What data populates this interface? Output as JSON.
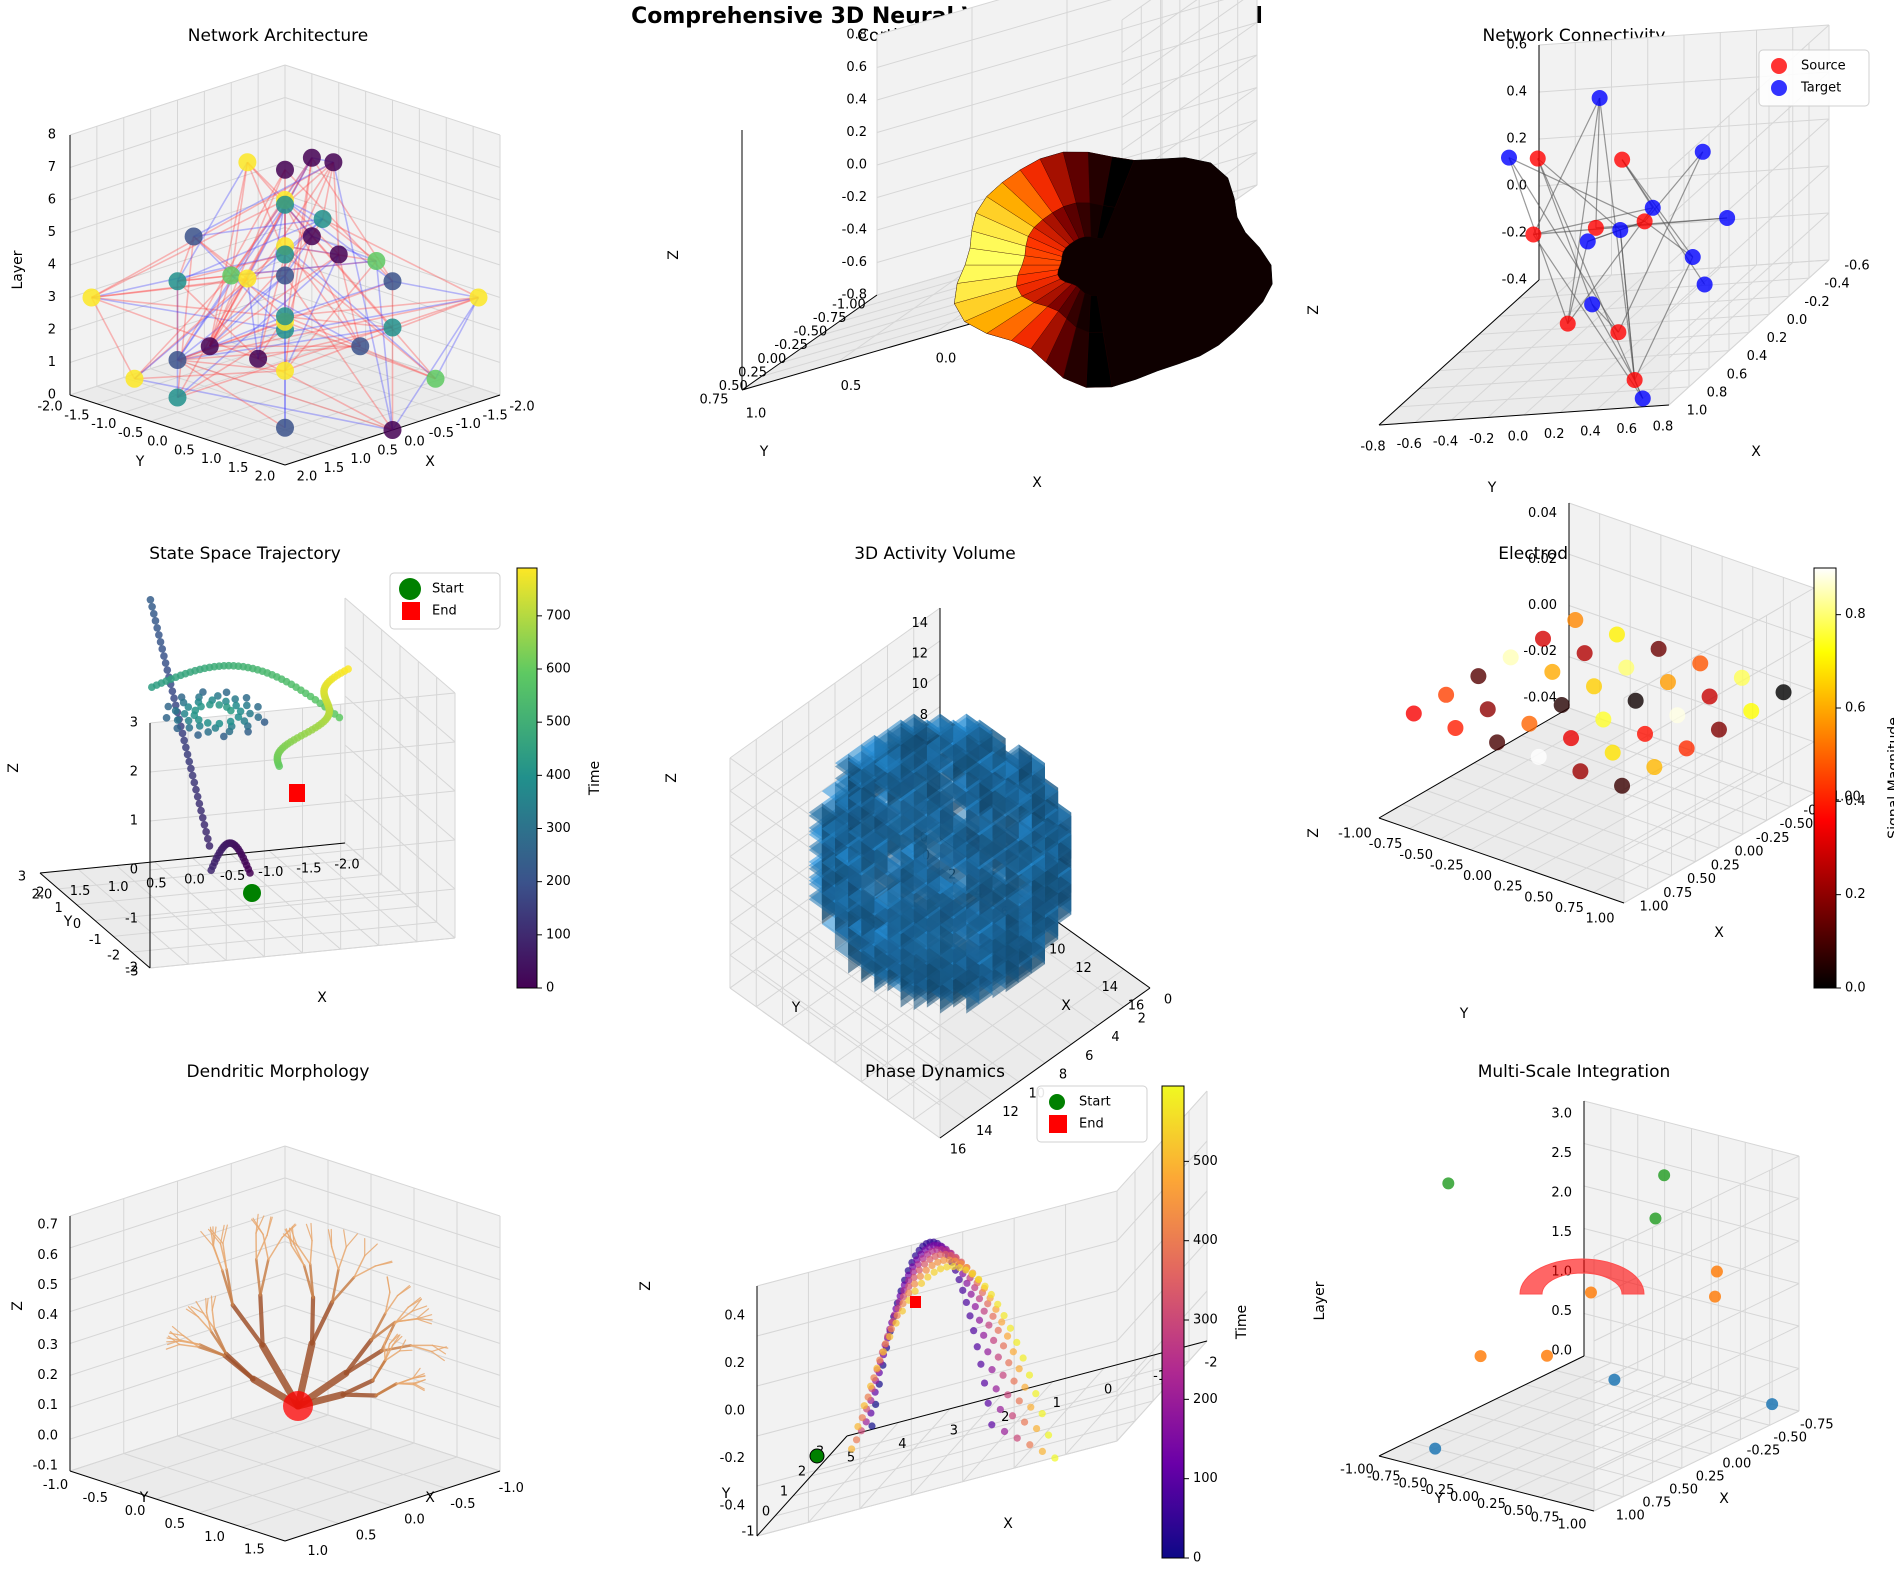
{
  "suptitle": "Comprehensive 3D Neural Visualization Dashboard",
  "chart_data": [
    {
      "type": "scatter3d",
      "title": "Network Architecture",
      "xlabel": "X",
      "ylabel": "Y",
      "zlabel": "Layer",
      "xlim": [
        -2,
        2
      ],
      "ylim": [
        -2,
        2
      ],
      "zlim": [
        0,
        8
      ],
      "xticks": [
        "-2.0",
        "-1.5",
        "-1.0",
        "-0.5",
        "0.0",
        "0.5",
        "1.0",
        "1.5",
        "2.0"
      ],
      "yticks": [
        "-2.0",
        "-1.5",
        "-1.0",
        "-0.5",
        "0.0",
        "0.5",
        "1.0",
        "1.5",
        "2.0"
      ],
      "zticks": [
        "0",
        "1",
        "2",
        "3",
        "4",
        "5",
        "6",
        "7",
        "8"
      ],
      "edge_colors": [
        "#ff4040",
        "#4040ff"
      ],
      "nodes": [
        {
          "x": 0,
          "y": 2,
          "z": 0,
          "c": "#440154"
        },
        {
          "x": -2,
          "y": 0,
          "z": 1,
          "c": "#21908c"
        },
        {
          "x": 2,
          "y": 0,
          "z": 1,
          "c": "#21908c"
        },
        {
          "x": 0,
          "y": -2,
          "z": 0,
          "c": "#3b528b"
        },
        {
          "x": 1.4,
          "y": 1.4,
          "z": 0.5,
          "c": "#3b528b"
        },
        {
          "x": -1.4,
          "y": 1.4,
          "z": 0.5,
          "c": "#5ec962"
        },
        {
          "x": 1.4,
          "y": -1.4,
          "z": 0.5,
          "c": "#fde725"
        },
        {
          "x": -1.4,
          "y": -1.4,
          "z": 0.5,
          "c": "#21908c"
        },
        {
          "x": 0.7,
          "y": 0.7,
          "z": 1.5,
          "c": "#fde725"
        },
        {
          "x": -0.7,
          "y": 0.7,
          "z": 1.5,
          "c": "#3b528b"
        },
        {
          "x": 0.7,
          "y": -0.7,
          "z": 1.5,
          "c": "#440154"
        },
        {
          "x": -0.7,
          "y": -0.7,
          "z": 1.5,
          "c": "#fde725"
        },
        {
          "x": 2,
          "y": 1.5,
          "z": 3,
          "c": "#440154"
        },
        {
          "x": -2,
          "y": -1.5,
          "z": 3,
          "c": "#440154"
        },
        {
          "x": 1.8,
          "y": -1.8,
          "z": 3,
          "c": "#fde725"
        },
        {
          "x": -1.8,
          "y": 1.8,
          "z": 3,
          "c": "#fde725"
        },
        {
          "x": 1,
          "y": 1,
          "z": 3.5,
          "c": "#21908c"
        },
        {
          "x": -1,
          "y": 1,
          "z": 3.5,
          "c": "#3b528b"
        },
        {
          "x": 1,
          "y": -1,
          "z": 3.5,
          "c": "#21908c"
        },
        {
          "x": -1,
          "y": -1,
          "z": 3.5,
          "c": "#fde725"
        },
        {
          "x": 0.3,
          "y": 0.3,
          "z": 4,
          "c": "#3b528b"
        },
        {
          "x": -0.3,
          "y": -0.3,
          "z": 4,
          "c": "#21908c"
        },
        {
          "x": 0.8,
          "y": -0.2,
          "z": 4,
          "c": "#5ec962"
        },
        {
          "x": -0.8,
          "y": 0.2,
          "z": 4,
          "c": "#440154"
        },
        {
          "x": 1.2,
          "y": 0.5,
          "z": 4.5,
          "c": "#fde725"
        },
        {
          "x": -1.2,
          "y": -0.5,
          "z": 4.5,
          "c": "#21908c"
        },
        {
          "x": 0.5,
          "y": -1.2,
          "z": 4.5,
          "c": "#3b528b"
        },
        {
          "x": -0.5,
          "y": 1.2,
          "z": 4.5,
          "c": "#5ec962"
        },
        {
          "x": 0,
          "y": 0,
          "z": 6,
          "c": "#fde725"
        },
        {
          "x": 0.6,
          "y": 0.6,
          "z": 6.5,
          "c": "#21908c"
        },
        {
          "x": -0.4,
          "y": -0.4,
          "z": 6.5,
          "c": "#440154"
        },
        {
          "x": 0.2,
          "y": -0.5,
          "z": 7,
          "c": "#fde725"
        },
        {
          "x": -0.6,
          "y": 0.3,
          "z": 7,
          "c": "#440154"
        },
        {
          "x": 0.4,
          "y": 0.9,
          "z": 8,
          "c": "#440154"
        }
      ]
    },
    {
      "type": "surface3d",
      "title": "Cortical Activation",
      "xlabel": "X",
      "ylabel": "Y",
      "zlabel": "Z",
      "xlim": [
        -1,
        1
      ],
      "ylim": [
        -1,
        1
      ],
      "zlim": [
        -0.8,
        0.8
      ],
      "xticks": [
        "-1.0",
        "-0.5",
        "0.0",
        "0.5",
        "1.0"
      ],
      "yticks": [
        "-1.00",
        "-0.75",
        "-0.50",
        "-0.25",
        "0.00",
        "0.25",
        "0.50",
        "0.75"
      ],
      "zticks": [
        "-0.8",
        "-0.6",
        "-0.4",
        "-0.2",
        "0.0",
        "0.2",
        "0.4",
        "0.6",
        "0.8"
      ],
      "colormap": [
        "#000000",
        "#7a0000",
        "#ff3000",
        "#ffb000",
        "#ffff60"
      ]
    },
    {
      "type": "scatter3d",
      "title": "Network Connectivity",
      "xlabel": "X",
      "ylabel": "Y",
      "zlabel": "Z",
      "xlim": [
        -0.6,
        1.0
      ],
      "ylim": [
        -0.8,
        0.8
      ],
      "zlim": [
        -0.4,
        0.7
      ],
      "xticks": [
        "-0.6",
        "-0.4",
        "-0.2",
        "0.0",
        "0.2",
        "0.4",
        "0.6",
        "0.8",
        "1.0"
      ],
      "yticks": [
        "-0.8",
        "-0.6",
        "-0.4",
        "-0.2",
        "0.0",
        "0.2",
        "0.4",
        "0.6",
        "0.8"
      ],
      "zticks": [
        "-0.4",
        "-0.2",
        "0.0",
        "0.2",
        "0.4",
        "0.6"
      ],
      "legend": [
        "Source",
        "Target"
      ],
      "source_color": "#ff0000",
      "target_color": "#0000ff",
      "sources": [
        [
          0.5,
          -0.2,
          0.6
        ],
        [
          0.2,
          0.1,
          0.45
        ],
        [
          0.7,
          0.5,
          0.35
        ],
        [
          0.1,
          -0.1,
          0.1
        ],
        [
          0.0,
          -0.5,
          0.05
        ],
        [
          0.6,
          0.3,
          -0.2
        ],
        [
          0.2,
          -0.2,
          -0.3
        ],
        [
          0.8,
          0.5,
          -0.35
        ]
      ],
      "targets": [
        [
          -0.3,
          -0.8,
          0.3
        ],
        [
          -0.3,
          -0.3,
          0.55
        ],
        [
          0.3,
          0.6,
          0.5
        ],
        [
          0.8,
          0.6,
          0.45
        ],
        [
          0.4,
          0.2,
          0.2
        ],
        [
          0.6,
          0.9,
          0.3
        ],
        [
          0.0,
          -0.2,
          0.0
        ],
        [
          0.4,
          0.6,
          0.05
        ],
        [
          0.5,
          0.1,
          -0.1
        ],
        [
          0.1,
          0.5,
          -0.2
        ],
        [
          0.9,
          0.6,
          -0.4
        ]
      ]
    },
    {
      "type": "line3d",
      "title": "State Space Trajectory",
      "xlabel": "X",
      "ylabel": "Y",
      "zlabel": "Z",
      "xlim": [
        -2,
        2
      ],
      "ylim": [
        -3,
        3
      ],
      "zlim": [
        -2.5,
        3
      ],
      "xticks": [
        "-2.0",
        "-1.5",
        "-1.0",
        "-0.5",
        "0.0",
        "0.5",
        "1.0",
        "1.5",
        "2.0"
      ],
      "yticks": [
        "-3",
        "-2",
        "-1",
        "0",
        "1",
        "2",
        "3"
      ],
      "zticks": [
        "-2",
        "-1",
        "0",
        "1",
        "2",
        "3"
      ],
      "legend": [
        "Start",
        "End"
      ],
      "colorbar": {
        "label": "Time",
        "ticks": [
          "0",
          "100",
          "200",
          "300",
          "400",
          "500",
          "600",
          "700"
        ],
        "min": 0,
        "max": 790
      }
    },
    {
      "type": "voxels3d",
      "title": "3D Activity Volume",
      "xlabel": "X",
      "ylabel": "Y",
      "zlabel": "Z",
      "xlim": [
        0,
        16
      ],
      "ylim": [
        0,
        16
      ],
      "zlim": [
        0,
        15
      ],
      "xticks": [
        "0",
        "2",
        "4",
        "6",
        "8",
        "10",
        "12",
        "14",
        "16"
      ],
      "yticks": [
        "0",
        "2",
        "4",
        "6",
        "8",
        "10",
        "12",
        "14",
        "16"
      ],
      "zticks": [
        "0",
        "2",
        "4",
        "6",
        "8",
        "10",
        "12",
        "14"
      ],
      "color": "#1f77b4"
    },
    {
      "type": "scatter3d",
      "title": "Electrode Array",
      "xlabel": "X",
      "ylabel": "Y",
      "zlabel": "Z",
      "xlim": [
        -1,
        1
      ],
      "ylim": [
        -1,
        1
      ],
      "zlim": [
        -0.05,
        0.05
      ],
      "xticks": [
        "-1.00",
        "-0.75",
        "-0.50",
        "-0.25",
        "0.00",
        "0.25",
        "0.50",
        "0.75",
        "1.00"
      ],
      "yticks": [
        "-1.00",
        "-0.75",
        "-0.50",
        "-0.25",
        "0.00",
        "0.25",
        "0.50",
        "0.75",
        "1.00"
      ],
      "zticks": [
        "-0.04",
        "-0.02",
        "0.00",
        "0.02",
        "0.04"
      ],
      "colorbar": {
        "label": "Signal Magnitude",
        "ticks": [
          "0.0",
          "0.2",
          "0.4",
          "0.6",
          "0.8"
        ],
        "min": 0,
        "max": 0.9
      },
      "values": [
        0.35,
        0.45,
        0.12,
        0.85,
        0.3,
        0.55,
        0.4,
        0.2,
        0.95,
        0.6,
        0.25,
        0.7,
        0.1,
        0.5,
        0.05,
        0.65,
        0.8,
        0.15,
        0.9,
        0.33,
        0.75,
        0.02,
        0.58,
        0.48,
        0.22,
        0.68,
        0.38,
        0.88,
        0.28,
        0.78,
        0.08,
        0.62,
        0.42,
        0.18,
        0.72,
        0.0
      ]
    },
    {
      "type": "line3d",
      "title": "Dendritic Morphology",
      "xlabel": "X",
      "ylabel": "Y",
      "zlabel": "Z",
      "xlim": [
        -1.2,
        1.2
      ],
      "ylim": [
        -1.2,
        1.5
      ],
      "zlim": [
        -0.1,
        0.75
      ],
      "xticks": [
        "-1.0",
        "-0.5",
        "0.0",
        "0.5",
        "1.0"
      ],
      "yticks": [
        "-1.0",
        "-0.5",
        "0.0",
        "0.5",
        "1.0",
        "1.5"
      ],
      "zticks": [
        "-0.1",
        "0.0",
        "0.1",
        "0.2",
        "0.3",
        "0.4",
        "0.5",
        "0.6",
        "0.7"
      ],
      "soma_color": "#ff0000"
    },
    {
      "type": "line3d",
      "title": "Phase Dynamics",
      "xlabel": "X",
      "ylabel": "Y",
      "zlabel": "Z",
      "xlim": [
        -2.2,
        5
      ],
      "ylim": [
        -1.5,
        3.5
      ],
      "zlim": [
        -0.55,
        0.55
      ],
      "xticks": [
        "-2",
        "-1",
        "0",
        "1",
        "2",
        "3",
        "4",
        "5"
      ],
      "yticks": [
        "-1",
        "0",
        "1",
        "2",
        "3"
      ],
      "zticks": [
        "-0.4",
        "-0.2",
        "0.0",
        "0.2",
        "0.4"
      ],
      "legend": [
        "Start",
        "End"
      ],
      "colorbar": {
        "label": "Time",
        "ticks": [
          "0",
          "100",
          "200",
          "300",
          "400",
          "500"
        ],
        "min": 0,
        "max": 595
      }
    },
    {
      "type": "scatter3d",
      "title": "Multi-Scale Integration",
      "xlabel": "X",
      "ylabel": "Y",
      "zlabel": "Layer",
      "xlim": [
        -0.9,
        0.9
      ],
      "ylim": [
        -1,
        1
      ],
      "zlim": [
        0,
        3.1
      ],
      "xticks": [
        "-0.75",
        "-0.50",
        "-0.25",
        "0.00",
        "0.25",
        "0.50",
        "0.75",
        "1.00"
      ],
      "yticks": [
        "-1.00",
        "-0.75",
        "-0.50",
        "-0.25",
        "0.00",
        "0.25",
        "0.50",
        "0.75",
        "1.00"
      ],
      "zticks": [
        "0.0",
        "0.5",
        "1.0",
        "1.5",
        "2.0",
        "2.5",
        "3.0"
      ],
      "layers": [
        {
          "color": "#1f77b4",
          "points": [
            [
              0.0,
              0.1,
              0.6
            ],
            [
              -0.75,
              0.75,
              0
            ],
            [
              0.75,
              -0.75,
              0
            ]
          ]
        },
        {
          "color": "#ff7f0e",
          "points": [
            [
              -0.6,
              0.4,
              1.6
            ],
            [
              0.3,
              -0.2,
              1.0
            ],
            [
              -0.4,
              0.6,
              1.5
            ],
            [
              0.5,
              -0.6,
              1.0
            ],
            [
              0.2,
              0.1,
              1.8
            ]
          ]
        },
        {
          "color": "#2ca02c",
          "points": [
            [
              -0.7,
              -0.2,
              2.5
            ],
            [
              0.5,
              -0.9,
              3.0
            ],
            [
              0.2,
              0.7,
              2.9
            ]
          ]
        }
      ],
      "surface_color": "#ff0000"
    }
  ]
}
